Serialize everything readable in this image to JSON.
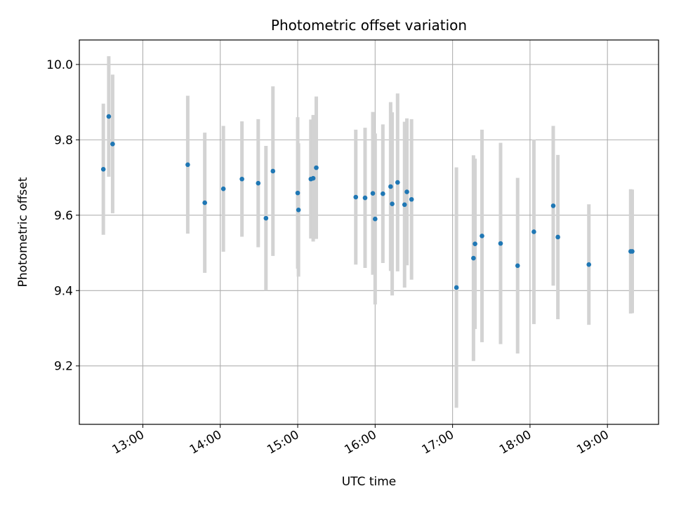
{
  "chart_data": {
    "type": "scatter",
    "title": "Photometric offset variation",
    "xlabel": "UTC time",
    "ylabel": "Photometric offset",
    "x_unit": "hours UTC",
    "xlim": [
      12.18,
      19.66
    ],
    "ylim": [
      9.045,
      10.065
    ],
    "x_ticks": [
      {
        "value": 13,
        "label": "13:00"
      },
      {
        "value": 14,
        "label": "14:00"
      },
      {
        "value": 15,
        "label": "15:00"
      },
      {
        "value": 16,
        "label": "16:00"
      },
      {
        "value": 17,
        "label": "17:00"
      },
      {
        "value": 18,
        "label": "18:00"
      },
      {
        "value": 19,
        "label": "19:00"
      }
    ],
    "y_ticks": [
      {
        "value": 9.2,
        "label": "9.2"
      },
      {
        "value": 9.4,
        "label": "9.4"
      },
      {
        "value": 9.6,
        "label": "9.6"
      },
      {
        "value": 9.8,
        "label": "9.8"
      },
      {
        "value": 10.0,
        "label": "10.0"
      }
    ],
    "grid": true,
    "marker_color": "#1f77b4",
    "errorbar_color": "#d3d3d3",
    "points": [
      {
        "x": 12.49,
        "y": 9.722,
        "ylow": 9.548,
        "yhigh": 9.896
      },
      {
        "x": 12.56,
        "y": 9.862,
        "ylow": 9.702,
        "yhigh": 10.022
      },
      {
        "x": 12.61,
        "y": 9.789,
        "ylow": 9.605,
        "yhigh": 9.973
      },
      {
        "x": 13.58,
        "y": 9.734,
        "ylow": 9.551,
        "yhigh": 9.917
      },
      {
        "x": 13.8,
        "y": 9.633,
        "ylow": 9.447,
        "yhigh": 9.819
      },
      {
        "x": 14.04,
        "y": 9.67,
        "ylow": 9.503,
        "yhigh": 9.837
      },
      {
        "x": 14.28,
        "y": 9.696,
        "ylow": 9.543,
        "yhigh": 9.849
      },
      {
        "x": 14.49,
        "y": 9.685,
        "ylow": 9.515,
        "yhigh": 9.855
      },
      {
        "x": 14.59,
        "y": 9.592,
        "ylow": 9.4,
        "yhigh": 9.784
      },
      {
        "x": 14.68,
        "y": 9.717,
        "ylow": 9.492,
        "yhigh": 9.942
      },
      {
        "x": 15.0,
        "y": 9.659,
        "ylow": 9.458,
        "yhigh": 9.86
      },
      {
        "x": 15.01,
        "y": 9.614,
        "ylow": 9.437,
        "yhigh": 9.791
      },
      {
        "x": 15.17,
        "y": 9.696,
        "ylow": 9.538,
        "yhigh": 9.854
      },
      {
        "x": 15.2,
        "y": 9.698,
        "ylow": 9.53,
        "yhigh": 9.866
      },
      {
        "x": 15.24,
        "y": 9.726,
        "ylow": 9.537,
        "yhigh": 9.915
      },
      {
        "x": 15.75,
        "y": 9.648,
        "ylow": 9.469,
        "yhigh": 9.827
      },
      {
        "x": 15.87,
        "y": 9.646,
        "ylow": 9.46,
        "yhigh": 9.832
      },
      {
        "x": 15.97,
        "y": 9.658,
        "ylow": 9.442,
        "yhigh": 9.874
      },
      {
        "x": 16.0,
        "y": 9.59,
        "ylow": 9.363,
        "yhigh": 9.817
      },
      {
        "x": 16.1,
        "y": 9.657,
        "ylow": 9.473,
        "yhigh": 9.841
      },
      {
        "x": 16.2,
        "y": 9.676,
        "ylow": 9.452,
        "yhigh": 9.9
      },
      {
        "x": 16.22,
        "y": 9.63,
        "ylow": 9.387,
        "yhigh": 9.873
      },
      {
        "x": 16.29,
        "y": 9.687,
        "ylow": 9.451,
        "yhigh": 9.923
      },
      {
        "x": 16.38,
        "y": 9.628,
        "ylow": 9.408,
        "yhigh": 9.848
      },
      {
        "x": 16.41,
        "y": 9.662,
        "ylow": 9.467,
        "yhigh": 9.857
      },
      {
        "x": 16.47,
        "y": 9.642,
        "ylow": 9.429,
        "yhigh": 9.855
      },
      {
        "x": 17.05,
        "y": 9.408,
        "ylow": 9.089,
        "yhigh": 9.727
      },
      {
        "x": 17.27,
        "y": 9.486,
        "ylow": 9.213,
        "yhigh": 9.759
      },
      {
        "x": 17.29,
        "y": 9.524,
        "ylow": 9.298,
        "yhigh": 9.75
      },
      {
        "x": 17.38,
        "y": 9.545,
        "ylow": 9.263,
        "yhigh": 9.827
      },
      {
        "x": 17.62,
        "y": 9.525,
        "ylow": 9.258,
        "yhigh": 9.792
      },
      {
        "x": 17.84,
        "y": 9.466,
        "ylow": 9.233,
        "yhigh": 9.699
      },
      {
        "x": 18.05,
        "y": 9.556,
        "ylow": 9.311,
        "yhigh": 9.801
      },
      {
        "x": 18.3,
        "y": 9.625,
        "ylow": 9.413,
        "yhigh": 9.837
      },
      {
        "x": 18.36,
        "y": 9.542,
        "ylow": 9.324,
        "yhigh": 9.76
      },
      {
        "x": 18.76,
        "y": 9.469,
        "ylow": 9.309,
        "yhigh": 9.629
      },
      {
        "x": 19.3,
        "y": 9.504,
        "ylow": 9.339,
        "yhigh": 9.669
      },
      {
        "x": 19.32,
        "y": 9.504,
        "ylow": 9.34,
        "yhigh": 9.668
      }
    ]
  }
}
